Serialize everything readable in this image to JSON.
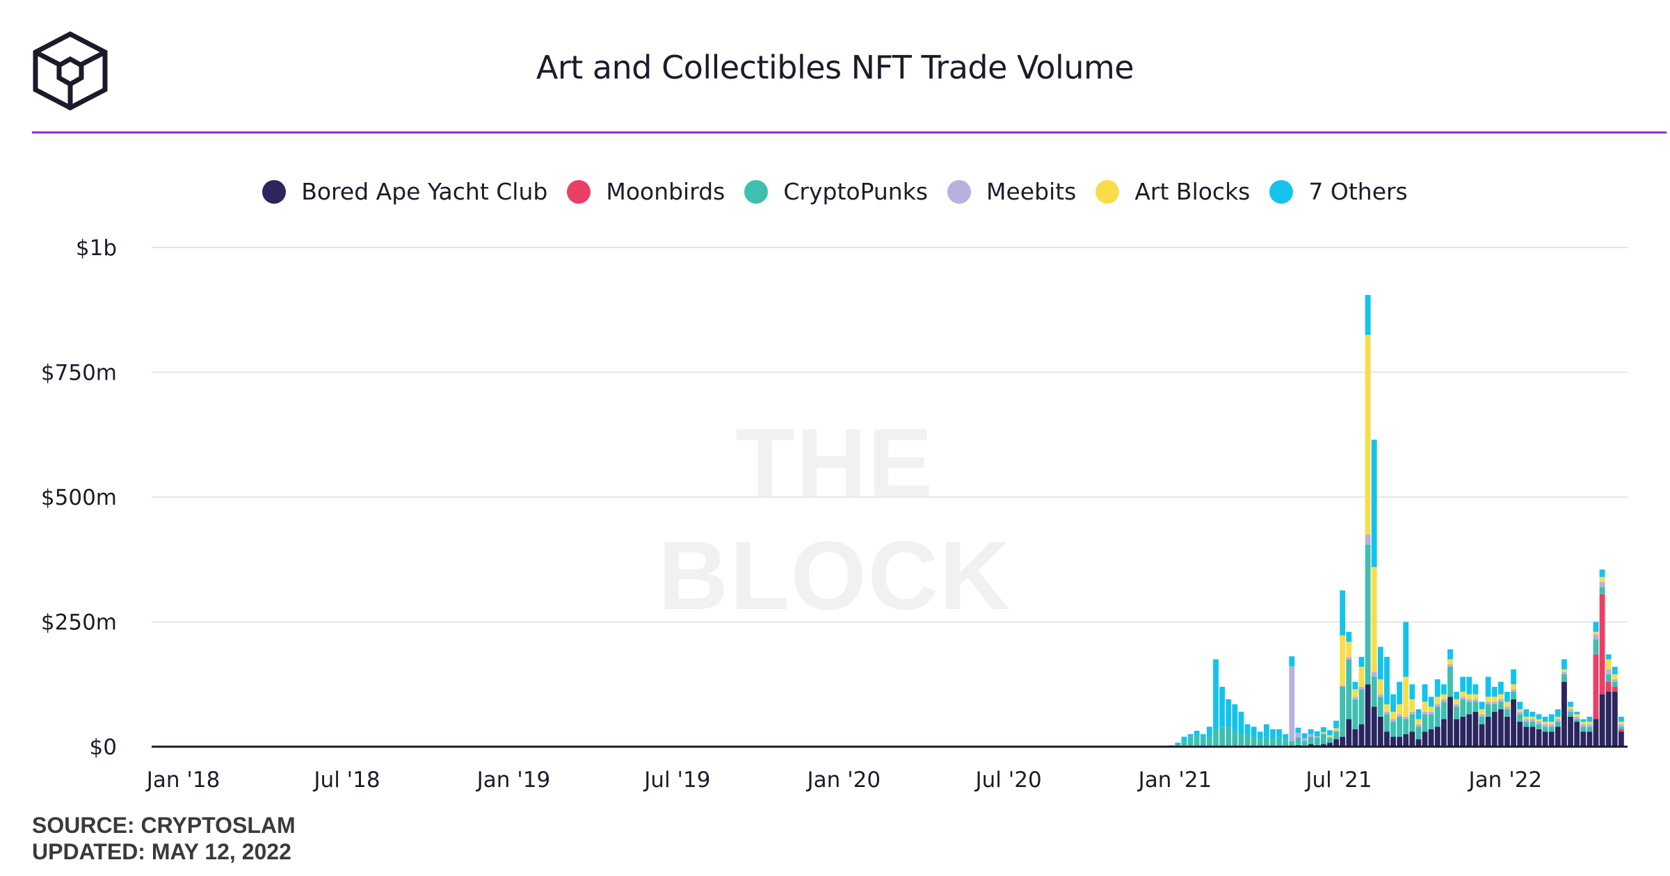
{
  "header": {
    "logo_icon": "the-block-cube-logo-icon",
    "title": "Art and Collectibles NFT Trade Volume"
  },
  "watermark": "THE BLOCK",
  "footer": {
    "source": "SOURCE: CRYPTOSLAM",
    "updated": "UPDATED: MAY 12, 2022"
  },
  "colors": {
    "accent_rule": "#9a2ad4",
    "grid": "#e6e6e6",
    "axis": "#1b1b2a"
  },
  "chart_data": {
    "type": "bar",
    "stacked": true,
    "title": "Art and Collectibles NFT Trade Volume",
    "xlabel": "",
    "ylabel": "",
    "ylim": [
      0,
      1000000000
    ],
    "y_ticks": [
      {
        "value": 0,
        "label": "$0"
      },
      {
        "value": 250000000,
        "label": "$250m"
      },
      {
        "value": 500000000,
        "label": "$500m"
      },
      {
        "value": 750000000,
        "label": "$750m"
      },
      {
        "value": 1000000000,
        "label": "$1b"
      }
    ],
    "x_tick_labels": [
      "Jan '18",
      "Jul '18",
      "Jan '19",
      "Jul '19",
      "Jan '20",
      "Jul '20",
      "Jan '21",
      "Jul '21",
      "Jan '22"
    ],
    "x_tick_dates": [
      "2018-01-01",
      "2018-07-01",
      "2019-01-01",
      "2019-07-01",
      "2020-01-01",
      "2020-07-01",
      "2021-01-01",
      "2021-07-01",
      "2022-01-01"
    ],
    "x_range": [
      "2017-11-27",
      "2022-05-16"
    ],
    "legend_position": "top-center",
    "grid": true,
    "units": "USD",
    "series_names": [
      "Bored Ape Yacht Club",
      "Moonbirds",
      "CryptoPunks",
      "Meebits",
      "Art Blocks",
      "7 Others"
    ],
    "series_colors": [
      "#2b2560",
      "#ea4065",
      "#3fbfb0",
      "#b9b0de",
      "#f8dd4b",
      "#13c3ec"
    ],
    "weeks": [
      "2020-12-28",
      "2021-01-04",
      "2021-01-11",
      "2021-01-18",
      "2021-01-25",
      "2021-02-01",
      "2021-02-08",
      "2021-02-15",
      "2021-02-22",
      "2021-03-01",
      "2021-03-08",
      "2021-03-15",
      "2021-03-22",
      "2021-03-29",
      "2021-04-05",
      "2021-04-12",
      "2021-04-19",
      "2021-04-26",
      "2021-05-03",
      "2021-05-10",
      "2021-05-17",
      "2021-05-24",
      "2021-05-31",
      "2021-06-07",
      "2021-06-14",
      "2021-06-21",
      "2021-06-28",
      "2021-07-05",
      "2021-07-12",
      "2021-07-19",
      "2021-07-26",
      "2021-08-02",
      "2021-08-09",
      "2021-08-16",
      "2021-08-23",
      "2021-08-30",
      "2021-09-06",
      "2021-09-13",
      "2021-09-20",
      "2021-09-27",
      "2021-10-04",
      "2021-10-11",
      "2021-10-18",
      "2021-10-25",
      "2021-11-01",
      "2021-11-08",
      "2021-11-15",
      "2021-11-22",
      "2021-11-29",
      "2021-12-06",
      "2021-12-13",
      "2021-12-20",
      "2021-12-27",
      "2022-01-03",
      "2022-01-10",
      "2022-01-17",
      "2022-01-24",
      "2022-01-31",
      "2022-02-07",
      "2022-02-14",
      "2022-02-21",
      "2022-02-28",
      "2022-03-07",
      "2022-03-14",
      "2022-03-21",
      "2022-03-28",
      "2022-04-04",
      "2022-04-11",
      "2022-04-18",
      "2022-04-25",
      "2022-05-02",
      "2022-05-09"
    ],
    "series": [
      {
        "name": "Bored Ape Yacht Club",
        "values": [
          0,
          0,
          0,
          0,
          0,
          0,
          0,
          0,
          0,
          0,
          0,
          0,
          0,
          0,
          0,
          0,
          0,
          0,
          0,
          1000000,
          3000000,
          2000000,
          5000000,
          3000000,
          5000000,
          8000000,
          15000000,
          20000000,
          55000000,
          35000000,
          45000000,
          125000000,
          80000000,
          60000000,
          30000000,
          20000000,
          20000000,
          25000000,
          30000000,
          15000000,
          30000000,
          35000000,
          40000000,
          55000000,
          100000000,
          55000000,
          60000000,
          65000000,
          70000000,
          45000000,
          60000000,
          70000000,
          75000000,
          60000000,
          95000000,
          50000000,
          40000000,
          40000000,
          35000000,
          30000000,
          30000000,
          40000000,
          130000000,
          60000000,
          50000000,
          30000000,
          30000000,
          55000000,
          105000000,
          110000000,
          110000000,
          30000000
        ]
      },
      {
        "name": "Moonbirds",
        "values": [
          0,
          0,
          0,
          0,
          0,
          0,
          0,
          0,
          0,
          0,
          0,
          0,
          0,
          0,
          0,
          0,
          0,
          0,
          0,
          0,
          0,
          0,
          0,
          0,
          0,
          0,
          0,
          0,
          0,
          0,
          0,
          0,
          0,
          0,
          0,
          0,
          0,
          0,
          0,
          0,
          0,
          0,
          0,
          0,
          0,
          0,
          0,
          0,
          0,
          0,
          0,
          0,
          0,
          0,
          0,
          0,
          0,
          0,
          0,
          0,
          0,
          0,
          0,
          0,
          0,
          0,
          0,
          130000000,
          200000000,
          20000000,
          10000000,
          5000000
        ]
      },
      {
        "name": "CryptoPunks",
        "values": [
          2000000,
          5000000,
          10000000,
          20000000,
          22000000,
          18000000,
          20000000,
          35000000,
          40000000,
          40000000,
          30000000,
          25000000,
          25000000,
          20000000,
          15000000,
          20000000,
          15000000,
          20000000,
          15000000,
          10000000,
          15000000,
          10000000,
          15000000,
          15000000,
          20000000,
          10000000,
          15000000,
          100000000,
          120000000,
          60000000,
          70000000,
          280000000,
          60000000,
          40000000,
          35000000,
          30000000,
          40000000,
          30000000,
          35000000,
          25000000,
          35000000,
          30000000,
          40000000,
          35000000,
          60000000,
          25000000,
          35000000,
          25000000,
          20000000,
          15000000,
          25000000,
          15000000,
          15000000,
          15000000,
          15000000,
          15000000,
          10000000,
          10000000,
          10000000,
          10000000,
          10000000,
          10000000,
          15000000,
          10000000,
          5000000,
          10000000,
          10000000,
          30000000,
          15000000,
          15000000,
          10000000,
          5000000
        ]
      },
      {
        "name": "Meebits",
        "values": [
          0,
          0,
          0,
          0,
          0,
          0,
          0,
          0,
          0,
          0,
          0,
          0,
          0,
          0,
          0,
          0,
          0,
          0,
          0,
          150000000,
          10000000,
          5000000,
          5000000,
          3000000,
          2000000,
          2000000,
          2000000,
          3000000,
          5000000,
          5000000,
          5000000,
          20000000,
          10000000,
          5000000,
          5000000,
          5000000,
          5000000,
          5000000,
          5000000,
          5000000,
          5000000,
          5000000,
          5000000,
          5000000,
          5000000,
          5000000,
          5000000,
          5000000,
          5000000,
          5000000,
          5000000,
          5000000,
          5000000,
          5000000,
          5000000,
          5000000,
          5000000,
          5000000,
          5000000,
          5000000,
          5000000,
          5000000,
          5000000,
          5000000,
          5000000,
          5000000,
          5000000,
          10000000,
          10000000,
          10000000,
          5000000,
          5000000
        ]
      },
      {
        "name": "Art Blocks",
        "values": [
          0,
          0,
          0,
          0,
          0,
          0,
          0,
          0,
          0,
          0,
          0,
          0,
          0,
          0,
          0,
          0,
          0,
          0,
          0,
          0,
          0,
          0,
          0,
          0,
          2000000,
          3000000,
          5000000,
          100000000,
          30000000,
          15000000,
          40000000,
          400000000,
          210000000,
          30000000,
          15000000,
          15000000,
          20000000,
          80000000,
          25000000,
          10000000,
          20000000,
          10000000,
          15000000,
          10000000,
          10000000,
          10000000,
          10000000,
          10000000,
          10000000,
          10000000,
          10000000,
          10000000,
          10000000,
          10000000,
          10000000,
          5000000,
          5000000,
          5000000,
          5000000,
          5000000,
          5000000,
          5000000,
          5000000,
          5000000,
          5000000,
          5000000,
          5000000,
          5000000,
          10000000,
          20000000,
          10000000,
          5000000
        ]
      },
      {
        "name": "7 Others",
        "values": [
          1000000,
          3000000,
          10000000,
          5000000,
          10000000,
          7000000,
          20000000,
          140000000,
          80000000,
          55000000,
          55000000,
          45000000,
          20000000,
          20000000,
          15000000,
          25000000,
          20000000,
          15000000,
          10000000,
          20000000,
          10000000,
          10000000,
          10000000,
          10000000,
          10000000,
          10000000,
          15000000,
          90000000,
          20000000,
          15000000,
          20000000,
          80000000,
          255000000,
          65000000,
          95000000,
          35000000,
          45000000,
          110000000,
          30000000,
          20000000,
          35000000,
          20000000,
          35000000,
          20000000,
          20000000,
          15000000,
          30000000,
          35000000,
          20000000,
          15000000,
          40000000,
          20000000,
          25000000,
          20000000,
          30000000,
          15000000,
          15000000,
          10000000,
          10000000,
          10000000,
          15000000,
          15000000,
          20000000,
          10000000,
          5000000,
          5000000,
          10000000,
          20000000,
          15000000,
          10000000,
          15000000,
          10000000
        ]
      }
    ]
  }
}
